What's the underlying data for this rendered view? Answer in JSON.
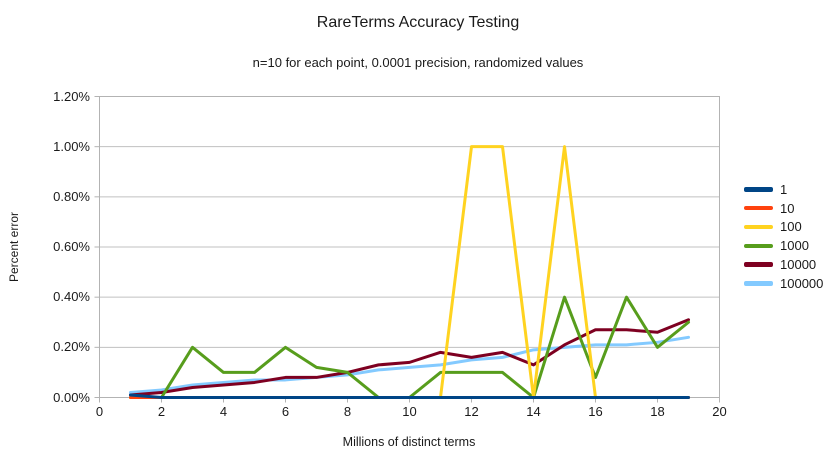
{
  "title": "RareTerms Accuracy Testing",
  "subtitle": "n=10 for each point, 0.0001 precision, randomized values",
  "chart_data": {
    "type": "line",
    "title": "RareTerms Accuracy Testing",
    "subtitle": "n=10 for each point, 0.0001 precision, randomized values",
    "xlabel": "Millions of distinct terms",
    "ylabel": "Percent error",
    "xlim": [
      0,
      20
    ],
    "ylim": [
      0,
      1.2
    ],
    "grid": "horizontal",
    "legend_position": "right",
    "x_tick_values": [
      0,
      2,
      4,
      6,
      8,
      10,
      12,
      14,
      16,
      18,
      20
    ],
    "x_tick_labels": [
      "0",
      "2",
      "4",
      "6",
      "8",
      "10",
      "12",
      "14",
      "16",
      "18",
      "20"
    ],
    "y_tick_values": [
      0,
      0.2,
      0.4,
      0.6,
      0.8,
      1.0,
      1.2
    ],
    "y_tick_labels": [
      "0.00%",
      "0.20%",
      "0.40%",
      "0.60%",
      "0.80%",
      "1.00%",
      "1.20%"
    ],
    "x": [
      1,
      2,
      3,
      4,
      5,
      6,
      7,
      8,
      9,
      10,
      11,
      12,
      13,
      14,
      15,
      16,
      17,
      18,
      19
    ],
    "series": [
      {
        "name": "1",
        "color": "#004586",
        "values": [
          0.01,
          0,
          0,
          0,
          0,
          0,
          0,
          0,
          0,
          0,
          0,
          0,
          0,
          0,
          0,
          0,
          0,
          0,
          0
        ]
      },
      {
        "name": "10",
        "color": "#ff420e",
        "values": [
          0,
          0,
          0,
          0,
          0,
          0,
          0,
          0,
          0,
          0,
          0,
          0,
          0,
          0,
          0,
          0,
          0,
          0,
          0
        ]
      },
      {
        "name": "100",
        "color": "#ffd320",
        "values": [
          0,
          0,
          0,
          0,
          0,
          0,
          0,
          0,
          0,
          0,
          0,
          1.0,
          1.0,
          0,
          1.0,
          0,
          0,
          0,
          0
        ]
      },
      {
        "name": "1000",
        "color": "#579d1c",
        "values": [
          0,
          0,
          0.2,
          0.1,
          0.1,
          0.2,
          0.12,
          0.1,
          0,
          0,
          0.1,
          0.1,
          0.1,
          0,
          0.4,
          0.08,
          0.4,
          0.2,
          0.3
        ]
      },
      {
        "name": "10000",
        "color": "#7e0021",
        "values": [
          0.01,
          0.02,
          0.04,
          0.05,
          0.06,
          0.08,
          0.08,
          0.1,
          0.13,
          0.14,
          0.18,
          0.16,
          0.18,
          0.13,
          0.21,
          0.27,
          0.27,
          0.26,
          0.31
        ]
      },
      {
        "name": "100000",
        "color": "#83caff",
        "values": [
          0.02,
          0.03,
          0.05,
          0.06,
          0.07,
          0.07,
          0.08,
          0.09,
          0.11,
          0.12,
          0.13,
          0.15,
          0.16,
          0.19,
          0.2,
          0.21,
          0.21,
          0.22,
          0.24
        ]
      }
    ],
    "axis_color": "#b3b3b3",
    "grid_color": "#c0c0c0",
    "text_color": "#1a1a1a"
  }
}
